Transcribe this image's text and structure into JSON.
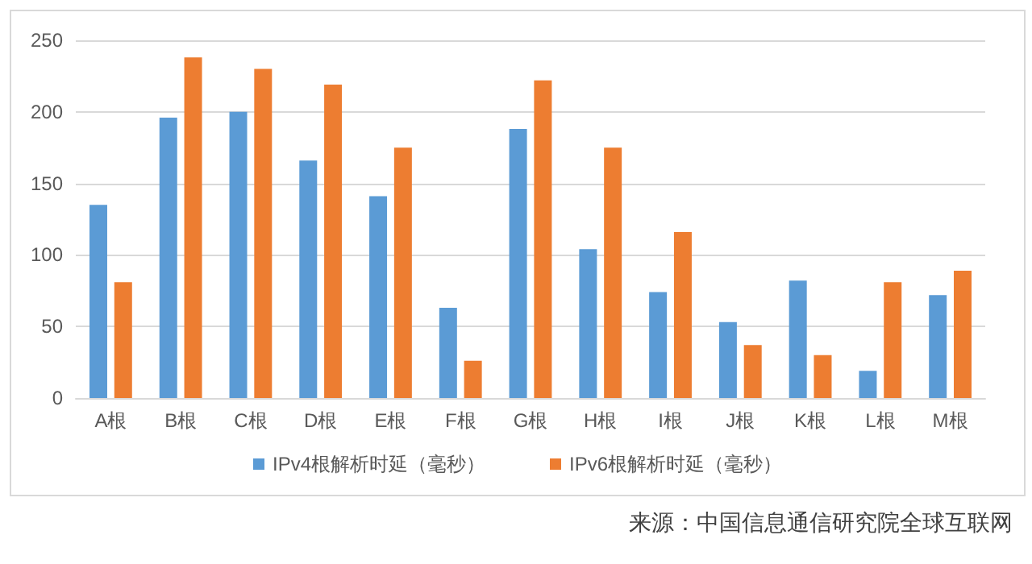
{
  "chart_data": {
    "type": "bar",
    "categories": [
      "A根",
      "B根",
      "C根",
      "D根",
      "E根",
      "F根",
      "G根",
      "H根",
      "I根",
      "J根",
      "K根",
      "L根",
      "M根"
    ],
    "series": [
      {
        "name": "IPv4根解析时延（毫秒）",
        "color": "#5b9bd5",
        "values": [
          135,
          196,
          200,
          166,
          141,
          63,
          188,
          104,
          74,
          53,
          82,
          19,
          72
        ]
      },
      {
        "name": "IPv6根解析时延（毫秒）",
        "color": "#ed7d31",
        "values": [
          81,
          238,
          230,
          219,
          175,
          26,
          222,
          175,
          116,
          37,
          30,
          81,
          89
        ]
      }
    ],
    "ylim": [
      0,
      250
    ],
    "yticks": [
      0,
      50,
      100,
      150,
      200,
      250
    ],
    "grid": "y",
    "legend": "bottom",
    "annotations": [
      "来源：中国信息通信研究院全球互联网"
    ]
  }
}
